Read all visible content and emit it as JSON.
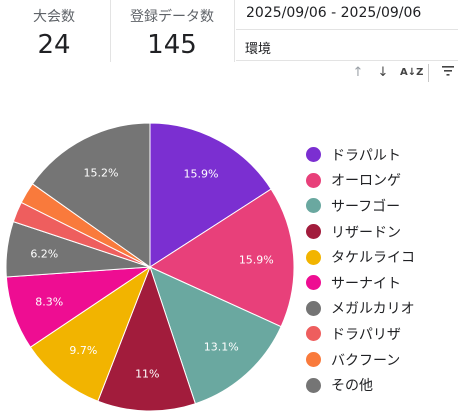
{
  "scorecards": {
    "tournaments": {
      "label": "大会数",
      "value": "24"
    },
    "records": {
      "label": "登録データ数",
      "value": "145"
    }
  },
  "date_range": "2025/09/06 - 2025/09/06",
  "dimension_label": "環境",
  "toolbar": {
    "sort_asc_icon": "arrow-up-icon",
    "sort_desc_icon": "arrow-down-icon",
    "sort_az_icon": "sort-az-icon",
    "filter_icon": "filter-icon"
  },
  "chart_data": {
    "type": "pie",
    "legend_position": "right",
    "title": "",
    "slices": [
      {
        "label": "ドラパルト",
        "value": 15.9,
        "data_label": "15.9%",
        "color": "#7b2fd1"
      },
      {
        "label": "オーロンゲ",
        "value": 15.9,
        "data_label": "15.9%",
        "color": "#e8407a"
      },
      {
        "label": "サーフゴー",
        "value": 13.1,
        "data_label": "13.1%",
        "color": "#6aa8a0"
      },
      {
        "label": "リザードン",
        "value": 11.0,
        "data_label": "11%",
        "color": "#a21c3c"
      },
      {
        "label": "タケルライコ",
        "value": 9.7,
        "data_label": "9.7%",
        "color": "#f2b400"
      },
      {
        "label": "サーナイト",
        "value": 8.3,
        "data_label": "8.3%",
        "color": "#ee0d92"
      },
      {
        "label": "メガルカリオ",
        "value": 6.2,
        "data_label": "6.2%",
        "color": "#747474"
      },
      {
        "label": "ドラパリザ",
        "value": 2.3,
        "data_label": "",
        "color": "#ee5e5e"
      },
      {
        "label": "バクフーン",
        "value": 2.4,
        "data_label": "",
        "color": "#f97a3c"
      },
      {
        "label": "その他",
        "value": 15.2,
        "data_label": "15.2%",
        "color": "#757575"
      }
    ]
  }
}
